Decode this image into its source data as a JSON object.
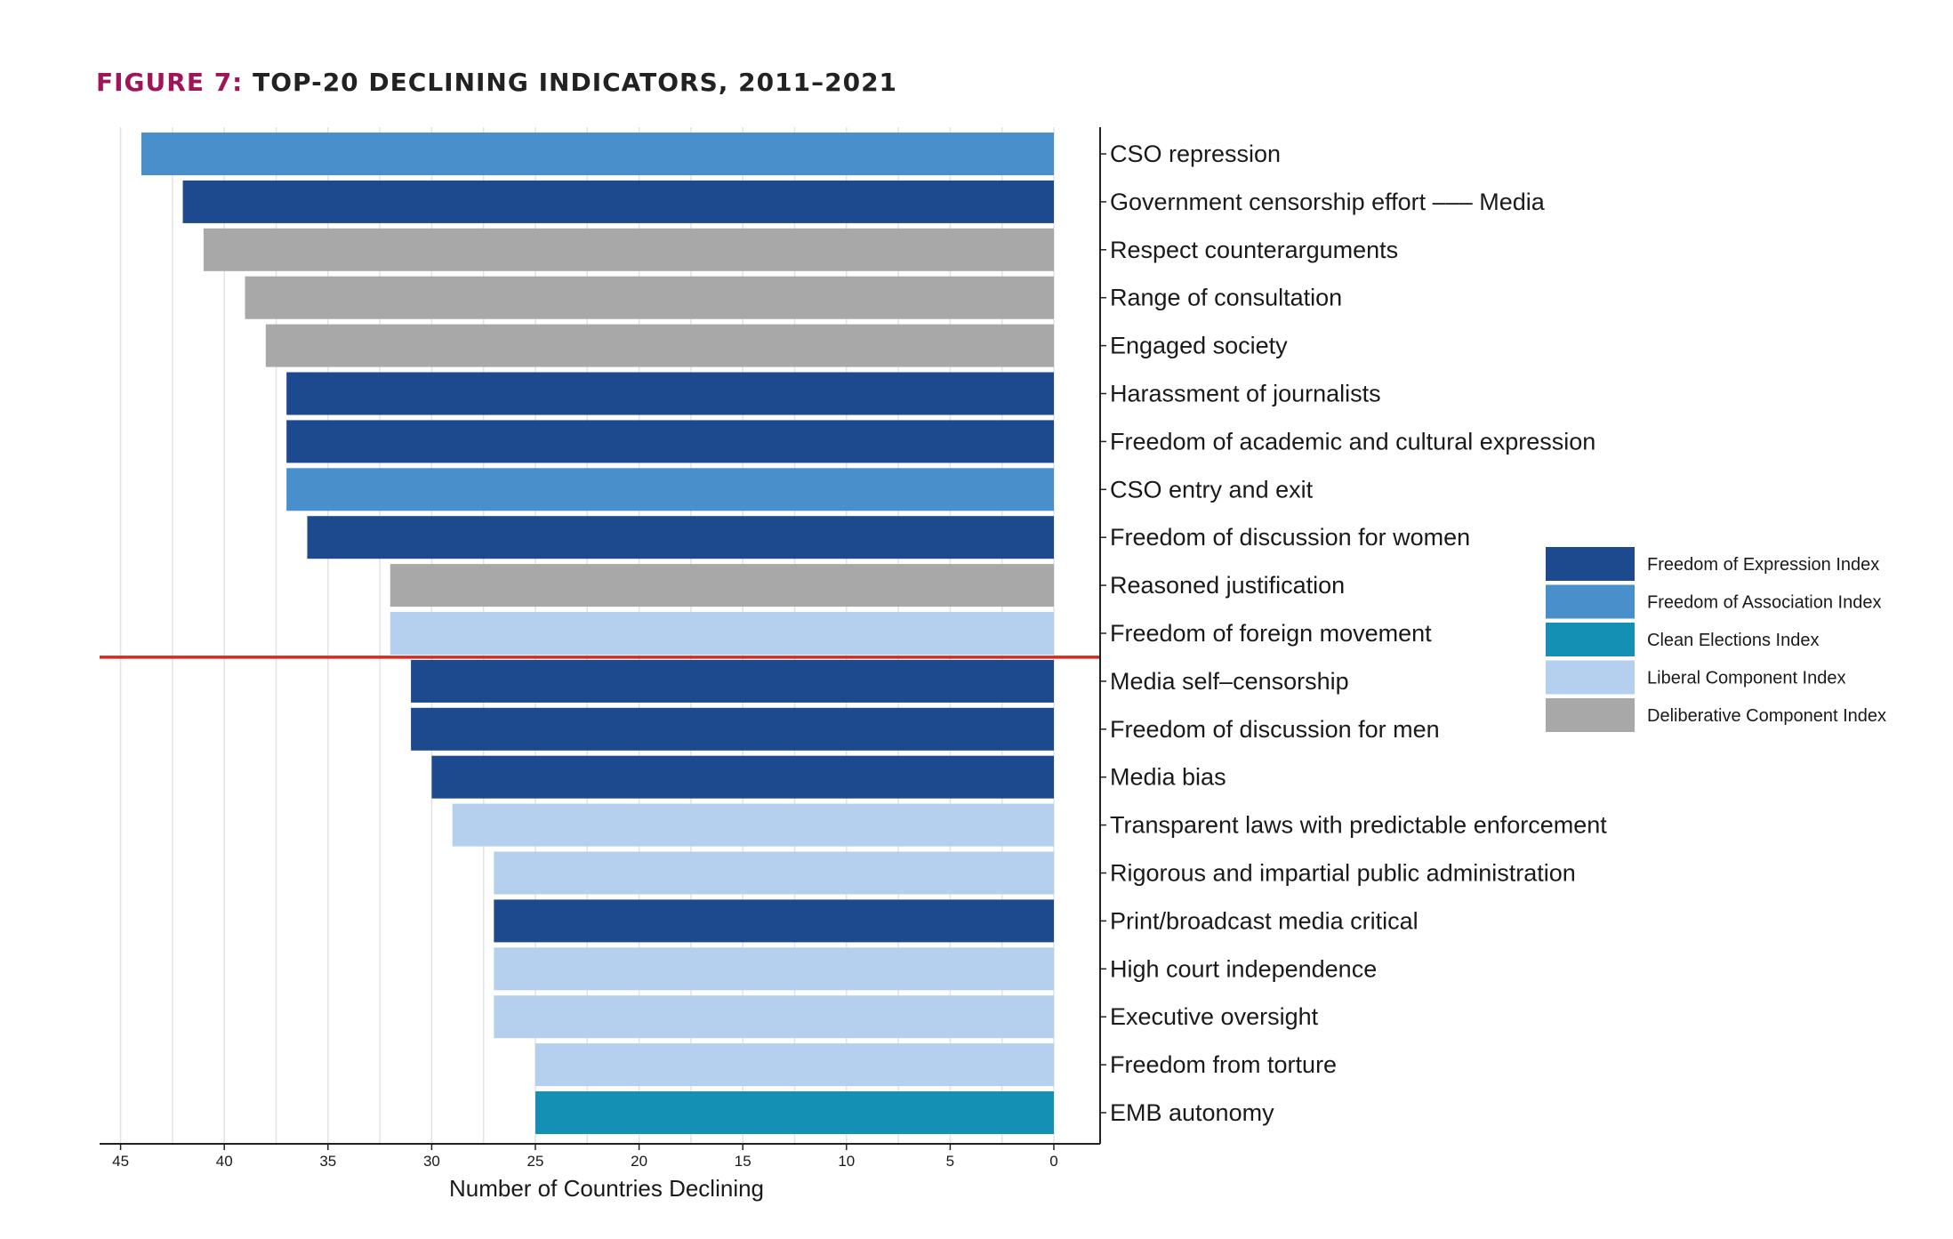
{
  "title": {
    "lead": "FIGURE 7:",
    "rest": "TOP-20 DECLINING INDICATORS, 2011–2021"
  },
  "chart_data": {
    "type": "bar",
    "orientation": "horizontal",
    "x_reversed": true,
    "xlabel": "Number of Countries Declining",
    "ylabel": "",
    "xlim": [
      0,
      46
    ],
    "xticks": [
      45,
      40,
      35,
      30,
      25,
      20,
      15,
      10,
      5,
      0
    ],
    "grid": "vertical",
    "legend_position": "right",
    "reference_line": {
      "after_index": 10,
      "color": "#d42a20"
    },
    "series": [
      {
        "name": "Freedom of Expression Index",
        "color": "#1d4a8e"
      },
      {
        "name": "Freedom of Association Index",
        "color": "#488fcc"
      },
      {
        "name": "Clean Elections Index",
        "color": "#1390b4"
      },
      {
        "name": "Liberal Component Index",
        "color": "#b5d0ef"
      },
      {
        "name": "Deliberative Component Index",
        "color": "#a8a8a8"
      }
    ],
    "bars": [
      {
        "label": "CSO repression",
        "value": 44,
        "series": 1
      },
      {
        "label": "Government censorship effort ––– Media",
        "value": 42,
        "series": 0
      },
      {
        "label": "Respect counterarguments",
        "value": 41,
        "series": 4
      },
      {
        "label": "Range of consultation",
        "value": 39,
        "series": 4
      },
      {
        "label": "Engaged society",
        "value": 38,
        "series": 4
      },
      {
        "label": "Harassment of journalists",
        "value": 37,
        "series": 0
      },
      {
        "label": "Freedom of academic and cultural expression",
        "value": 37,
        "series": 0
      },
      {
        "label": "CSO entry and exit",
        "value": 37,
        "series": 1
      },
      {
        "label": "Freedom of discussion for women",
        "value": 36,
        "series": 0
      },
      {
        "label": "Reasoned justification",
        "value": 32,
        "series": 4
      },
      {
        "label": "Freedom of foreign movement",
        "value": 32,
        "series": 3
      },
      {
        "label": "Media self–censorship",
        "value": 31,
        "series": 0
      },
      {
        "label": "Freedom of discussion for men",
        "value": 31,
        "series": 0
      },
      {
        "label": "Media bias",
        "value": 30,
        "series": 0
      },
      {
        "label": "Transparent laws with predictable enforcement",
        "value": 29,
        "series": 3
      },
      {
        "label": "Rigorous and impartial public administration",
        "value": 27,
        "series": 3
      },
      {
        "label": "Print/broadcast media critical",
        "value": 27,
        "series": 0
      },
      {
        "label": "High court independence",
        "value": 27,
        "series": 3
      },
      {
        "label": "Executive oversight",
        "value": 27,
        "series": 3
      },
      {
        "label": "Freedom from torture",
        "value": 25,
        "series": 3
      },
      {
        "label": "EMB autonomy",
        "value": 25,
        "series": 2
      }
    ]
  }
}
